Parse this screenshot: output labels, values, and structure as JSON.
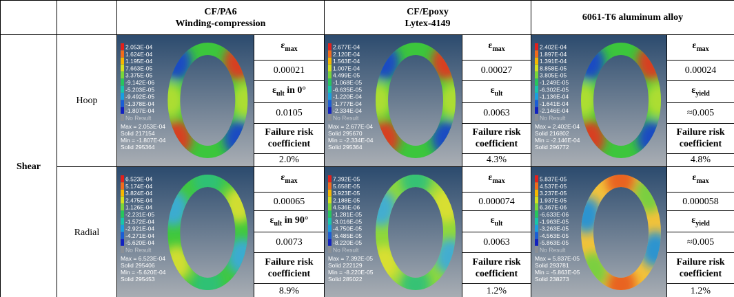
{
  "header": {
    "materials": [
      [
        "CF/PA6",
        "Winding-compression"
      ],
      [
        "CF/Epoxy",
        "Lytex-4149"
      ],
      [
        "6061-T6 aluminum alloy"
      ]
    ]
  },
  "load": "Shear",
  "rows": [
    {
      "direction": "Hoop",
      "materials": [
        {
          "plot": {
            "legend": [
              "2.053E-04",
              "1.624E-04",
              "1.195E-04",
              "7.663E-05",
              "3.375E-05",
              "-9.142E-06",
              "-5.203E-05",
              "-9.492E-05",
              "-1.378E-04",
              "-1.807E-04",
              "No Result"
            ],
            "footer": [
              "Max = 2.053E-04",
              "Solid 217154",
              "Min = -1.807E-04",
              "Solid 295364"
            ]
          },
          "cells": [
            {
              "base": "ε",
              "sub": "max"
            },
            "0.00021",
            {
              "base": "ε",
              "sub": "ult",
              "tail": " in 0°"
            },
            "0.0105",
            "Failure risk coefficient",
            "2.0%"
          ]
        },
        {
          "plot": {
            "legend": [
              "2.677E-04",
              "2.120E-04",
              "1.563E-04",
              "1.007E-04",
              "4.499E-05",
              "-1.068E-05",
              "-6.635E-05",
              "-1.220E-04",
              "-1.777E-04",
              "-2.334E-04",
              "No Result"
            ],
            "footer": [
              "Max = 2.677E-04",
              "Solid 295670",
              "Min = -2.334E-04",
              "Solid 295364"
            ]
          },
          "cells": [
            {
              "base": "ε",
              "sub": "max"
            },
            "0.00027",
            {
              "base": "ε",
              "sub": "ult"
            },
            "0.0063",
            "Failure risk coefficient",
            "4.3%"
          ]
        },
        {
          "plot": {
            "legend": [
              "2.402E-04",
              "1.897E-04",
              "1.391E-04",
              "8.858E-05",
              "3.805E-05",
              "-1.249E-05",
              "-6.302E-05",
              "-1.136E-04",
              "-1.641E-04",
              "-2.146E-04",
              "No Result"
            ],
            "footer": [
              "Max = 2.402E-04",
              "Solid 216802",
              "Min = -2.146E-04",
              "Solid 296772"
            ]
          },
          "cells": [
            {
              "base": "ε",
              "sub": "max"
            },
            "0.00024",
            {
              "base": "ε",
              "sub": "yield"
            },
            "≈0.005",
            "Failure risk coefficient",
            "4.8%"
          ]
        }
      ]
    },
    {
      "direction": "Radial",
      "materials": [
        {
          "plot": {
            "legend": [
              "6.523E-04",
              "5.174E-04",
              "3.824E-04",
              "2.475E-04",
              "1.126E-04",
              "-2.231E-05",
              "-1.572E-04",
              "-2.921E-04",
              "-4.271E-04",
              "-5.620E-04",
              "No Result"
            ],
            "footer": [
              "Max = 6.523E-04",
              "Solid 295406",
              "Min = -5.620E-04",
              "Solid 295453"
            ]
          },
          "cells": [
            {
              "base": "ε",
              "sub": "max"
            },
            "0.00065",
            {
              "base": "ε",
              "sub": "ult",
              "tail": " in 90°"
            },
            "0.0073",
            "Failure risk coefficient",
            "8.9%"
          ]
        },
        {
          "plot": {
            "legend": [
              "7.392E-05",
              "5.658E-05",
              "3.923E-05",
              "2.188E-05",
              "4.536E-06",
              "-1.281E-05",
              "-3.016E-05",
              "-4.750E-05",
              "-6.485E-05",
              "-8.220E-05",
              "No Result"
            ],
            "footer": [
              "Max = 7.392E-05",
              "Solid 222129",
              "Min = -8.220E-05",
              "Solid 285022"
            ]
          },
          "cells": [
            {
              "base": "ε",
              "sub": "max"
            },
            "0.000074",
            {
              "base": "ε",
              "sub": "ult"
            },
            "0.0063",
            "Failure risk coefficient",
            "1.2%"
          ]
        },
        {
          "plot": {
            "legend": [
              "5.837E-05",
              "4.537E-05",
              "3.237E-05",
              "1.937E-05",
              "6.367E-06",
              "-6.633E-06",
              "-1.963E-05",
              "-3.263E-05",
              "-4.563E-05",
              "-5.863E-05",
              "No Result"
            ],
            "footer": [
              "Max = 5.837E-05",
              "Solid 293781",
              "Min = -5.863E-05",
              "Solid 238273"
            ]
          },
          "cells": [
            {
              "base": "ε",
              "sub": "max"
            },
            "0.000058",
            {
              "base": "ε",
              "sub": "yield"
            },
            "≈0.005",
            "Failure risk coefficient",
            "1.2%"
          ]
        }
      ]
    }
  ]
}
